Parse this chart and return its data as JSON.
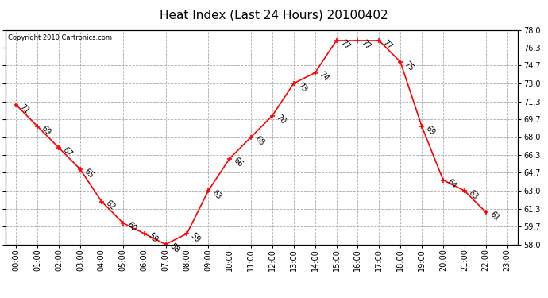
{
  "title": "Heat Index (Last 24 Hours) 20100402",
  "copyright": "Copyright 2010 Cartronics.com",
  "hours": [
    0,
    1,
    2,
    3,
    4,
    5,
    6,
    7,
    8,
    9,
    10,
    11,
    12,
    13,
    14,
    15,
    16,
    17,
    18,
    19,
    20,
    21,
    22,
    23
  ],
  "values": [
    71,
    69,
    67,
    65,
    62,
    60,
    59,
    58,
    59,
    63,
    66,
    68,
    70,
    73,
    74,
    77,
    77,
    77,
    75,
    69,
    64,
    63,
    61,
    null
  ],
  "ylim": [
    58.0,
    78.0
  ],
  "yticks": [
    58.0,
    59.7,
    61.3,
    63.0,
    64.7,
    66.3,
    68.0,
    69.7,
    71.3,
    73.0,
    74.7,
    76.3,
    78.0
  ],
  "line_color": "red",
  "marker": "+",
  "marker_color": "red",
  "bg_color": "white",
  "grid_color": "#aaaaaa",
  "title_fontsize": 11,
  "label_fontsize": 7,
  "anno_fontsize": 7,
  "x_hour_labels": [
    "00:00",
    "01:00",
    "02:00",
    "03:00",
    "04:00",
    "05:00",
    "06:00",
    "07:00",
    "08:00",
    "09:00",
    "10:00",
    "11:00",
    "12:00",
    "13:00",
    "14:00",
    "15:00",
    "16:00",
    "17:00",
    "18:00",
    "19:00",
    "20:00",
    "21:00",
    "22:00",
    "23:00"
  ]
}
